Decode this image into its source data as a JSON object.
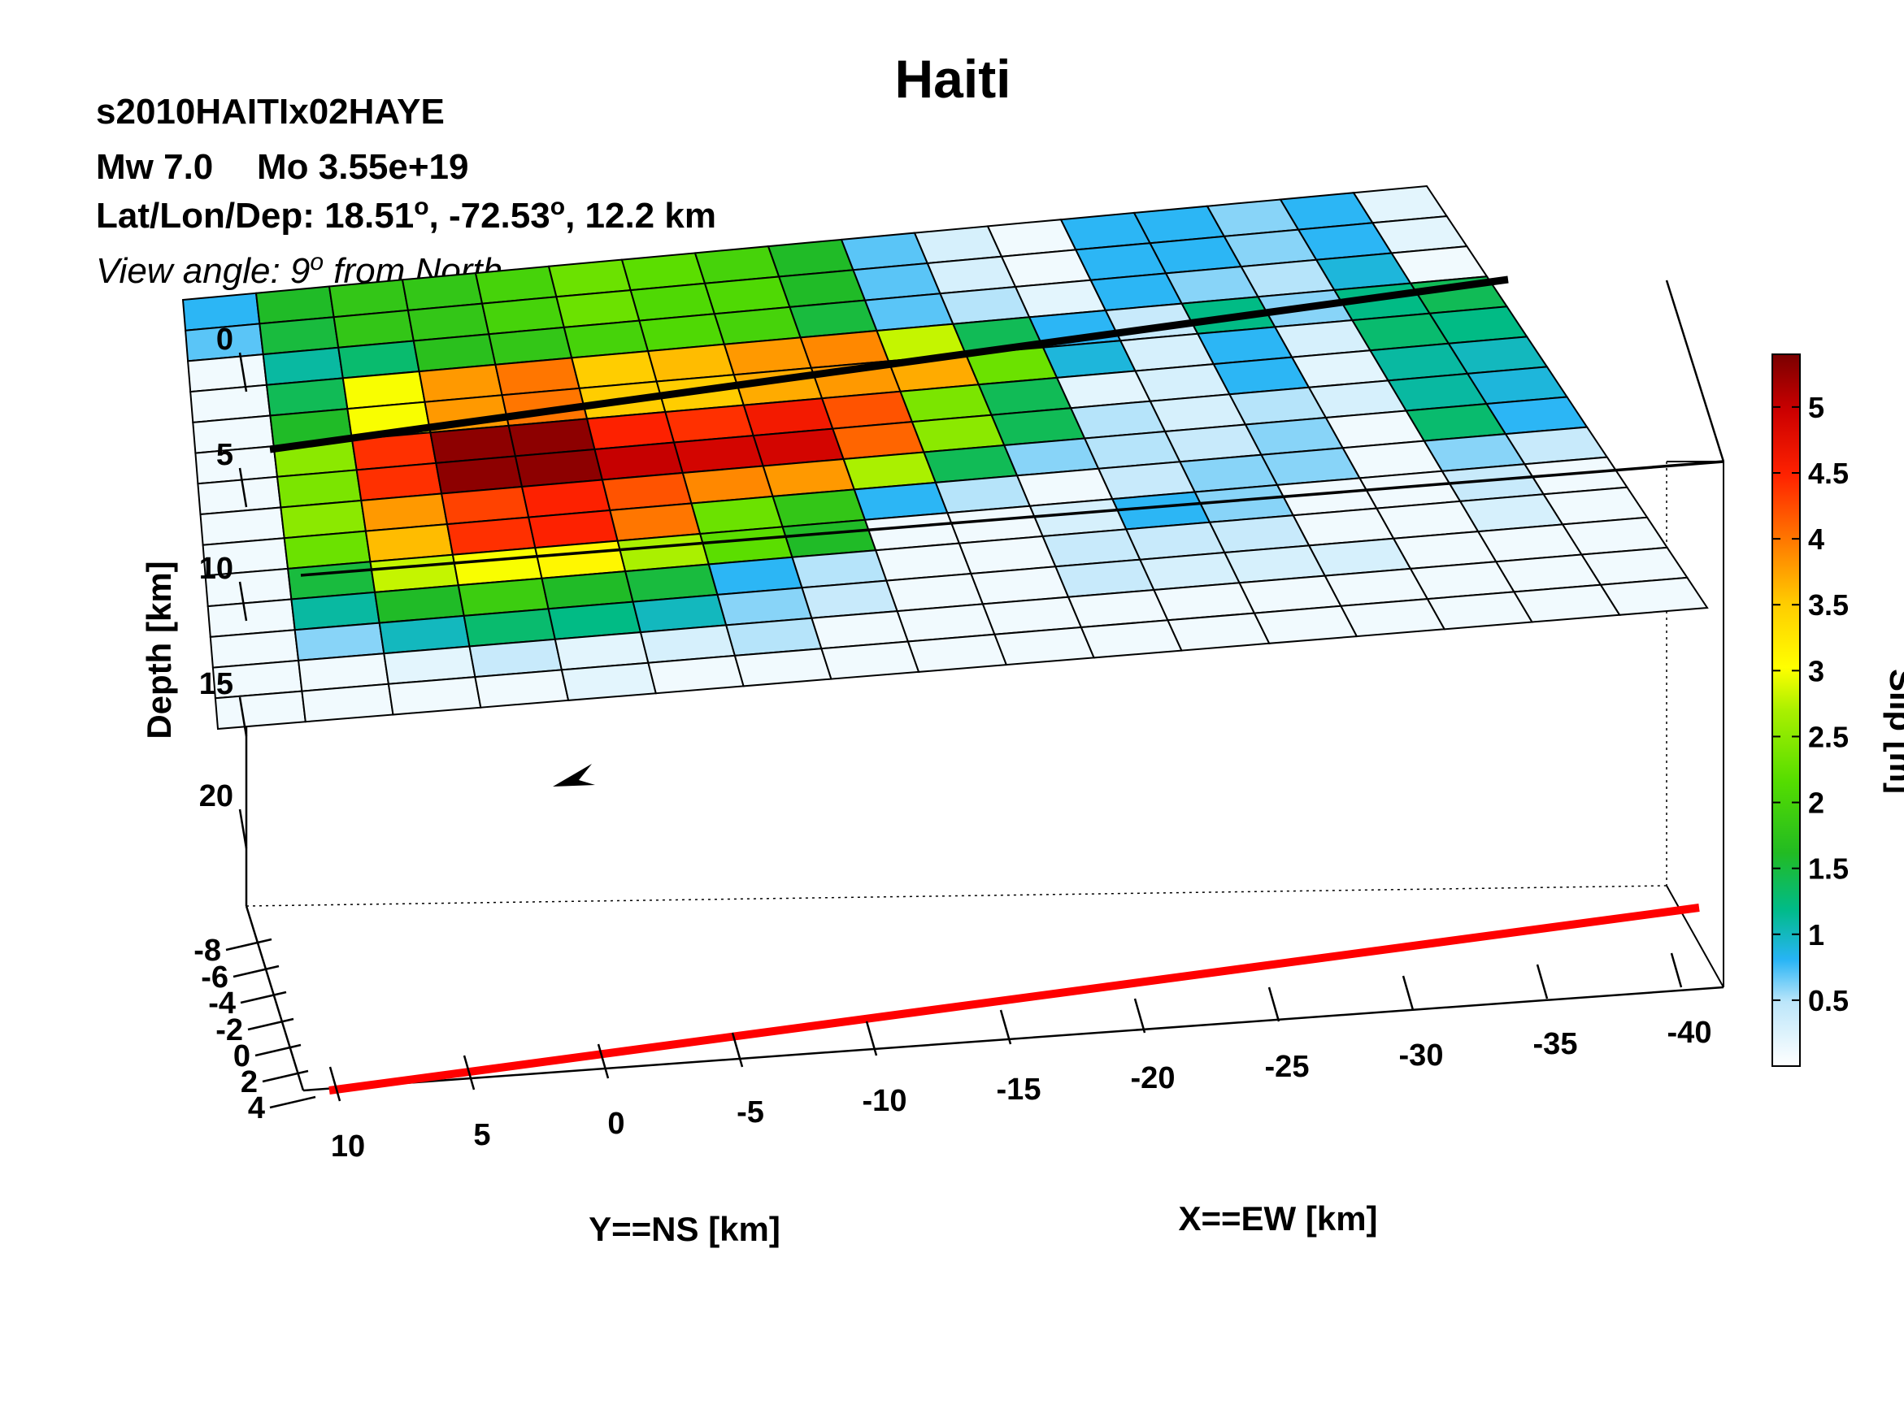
{
  "header": {
    "title": "Haiti",
    "model_id": "s2010HAITIx02HAYE",
    "mw": "Mw 7.0",
    "mo": "Mo 3.55e+19",
    "latlon_prefix": "Lat/Lon/Dep: 18.51",
    "latlon_mid": ", -72.53",
    "latlon_suffix": ", 12.2 km",
    "degree_sign": "o",
    "view_prefix": "View angle:   9",
    "view_suffix": " from North"
  },
  "chart_data": {
    "type": "heatmap",
    "title": "Haiti",
    "xlabel": "X==EW [km]",
    "ylabel": "Y==NS [km]",
    "zlabel": "Depth [km]",
    "colorbar_label": "Slip [m]",
    "x_ticks": [
      "10",
      "5",
      "0",
      "-5",
      "-10",
      "-15",
      "-20",
      "-25",
      "-30",
      "-35",
      "-40"
    ],
    "y_ticks": [
      "-8",
      "-6",
      "-4",
      "-2",
      "0",
      "2",
      "4"
    ],
    "depth_ticks": [
      "0",
      "5",
      "10",
      "15",
      "20"
    ],
    "colorbar_ticks": [
      "0.5",
      "1",
      "1.5",
      "2",
      "2.5",
      "3",
      "3.5",
      "4",
      "4.5",
      "5"
    ],
    "colorbar_range": [
      0,
      5.4
    ],
    "colors": {
      "surface_trace": "#000000",
      "fault_bottom": "#ff0000",
      "hypocenter": "#000000"
    },
    "slip_grid": [
      [
        0.8,
        1.6,
        1.8,
        1.8,
        2.0,
        2.3,
        2.2,
        2.0,
        1.6,
        0.7,
        0.3,
        0.1,
        0.8,
        0.8,
        0.6,
        0.8,
        0.2
      ],
      [
        0.7,
        1.5,
        1.8,
        1.8,
        2.0,
        2.3,
        2.1,
        2.1,
        1.6,
        0.7,
        0.3,
        0.1,
        0.8,
        0.8,
        0.6,
        0.8,
        0.2
      ],
      [
        0.1,
        1.1,
        1.3,
        1.7,
        1.8,
        2.0,
        2.1,
        2.0,
        1.5,
        0.7,
        0.5,
        0.2,
        0.8,
        0.6,
        0.5,
        0.9,
        0.1
      ],
      [
        0.1,
        1.4,
        3.0,
        3.8,
        4.0,
        3.5,
        3.6,
        3.8,
        3.9,
        2.8,
        1.4,
        0.8,
        0.4,
        1.2,
        0.6,
        1.2,
        1.4
      ],
      [
        0.1,
        1.6,
        3.0,
        3.8,
        4.0,
        3.5,
        3.5,
        3.7,
        3.8,
        3.7,
        2.3,
        0.9,
        0.3,
        0.8,
        0.3,
        1.3,
        1.2
      ],
      [
        0.1,
        2.5,
        4.4,
        5.3,
        5.3,
        4.5,
        4.4,
        4.6,
        4.2,
        2.4,
        1.4,
        0.2,
        0.3,
        0.8,
        0.2,
        1.1,
        1.0
      ],
      [
        0.1,
        2.4,
        4.4,
        5.3,
        5.3,
        5.0,
        4.9,
        4.9,
        4.1,
        2.5,
        1.4,
        0.5,
        0.3,
        0.5,
        0.3,
        1.1,
        0.9
      ],
      [
        0.1,
        2.5,
        3.8,
        4.3,
        4.5,
        4.2,
        3.9,
        3.8,
        2.7,
        1.4,
        0.6,
        0.5,
        0.4,
        0.6,
        0.1,
        1.3,
        0.8
      ],
      [
        0.1,
        2.3,
        3.6,
        4.4,
        4.5,
        4.0,
        2.3,
        1.8,
        0.8,
        0.5,
        0.1,
        0.4,
        0.6,
        0.6,
        0.1,
        0.6,
        0.4
      ],
      [
        0.1,
        1.5,
        2.8,
        3.0,
        3.1,
        2.7,
        2.2,
        1.6,
        0.1,
        0.1,
        0.3,
        0.8,
        0.6,
        0.1,
        0.1,
        0.4,
        0.1
      ],
      [
        0.1,
        1.1,
        1.6,
        1.9,
        1.6,
        1.5,
        0.8,
        0.5,
        0.1,
        0.1,
        0.4,
        0.4,
        0.4,
        0.1,
        0.1,
        0.3,
        0.1
      ],
      [
        0.1,
        0.6,
        1.0,
        1.3,
        1.2,
        1.0,
        0.6,
        0.4,
        0.1,
        0.1,
        0.4,
        0.3,
        0.3,
        0.3,
        0.1,
        0.1,
        0.1
      ],
      [
        0.1,
        0.1,
        0.2,
        0.4,
        0.2,
        0.3,
        0.5,
        0.1,
        0.1,
        0.1,
        0.1,
        0.1,
        0.1,
        0.1,
        0.1,
        0.1,
        0.1
      ],
      [
        0.1,
        0.1,
        0.1,
        0.1,
        0.2,
        0.1,
        0.1,
        0.1,
        0.1,
        0.1,
        0.1,
        0.1,
        0.1,
        0.1,
        0.1,
        0.1,
        0.1
      ]
    ]
  }
}
